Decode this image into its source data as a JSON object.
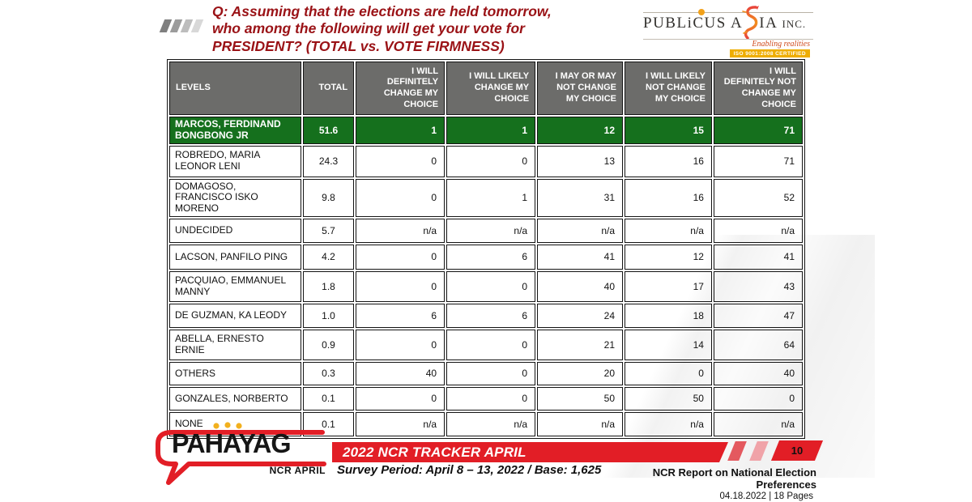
{
  "question": {
    "text": "Q: Assuming that the elections are held tomorrow, who among the following will get your vote for PRESIDENT? (TOTAL vs. VOTE FIRMNESS)"
  },
  "logo": {
    "name_pre": "PUBL",
    "name_i": "i",
    "name_mid": "CUS A",
    "name_post": "IA ",
    "inc": "INC.",
    "tagline": "Enabling realities",
    "badge": "ISO 9001:2008 CERTIFIED"
  },
  "table": {
    "headers": [
      "LEVELS",
      "TOTAL",
      "I WILL DEFINITELY CHANGE MY CHOICE",
      "I WILL LIKELY CHANGE MY CHOICE",
      "I MAY OR MAY NOT CHANGE MY CHOICE",
      "I WILL LIKELY NOT CHANGE MY CHOICE",
      "I WILL DEFINITELY NOT CHANGE MY CHOICE"
    ],
    "rows": [
      {
        "level": "MARCOS, FERDINAND BONGBONG JR",
        "total": "51.6",
        "values": [
          "1",
          "1",
          "12",
          "15",
          "71"
        ],
        "highlight": true
      },
      {
        "level": "ROBREDO, MARIA LEONOR LENI",
        "total": "24.3",
        "values": [
          "0",
          "0",
          "13",
          "16",
          "71"
        ],
        "highlight": false
      },
      {
        "level": "DOMAGOSO, FRANCISCO ISKO MORENO",
        "total": "9.8",
        "values": [
          "0",
          "1",
          "31",
          "16",
          "52"
        ],
        "highlight": false
      },
      {
        "level": "UNDECIDED",
        "total": "5.7",
        "values": [
          "n/a",
          "n/a",
          "n/a",
          "n/a",
          "n/a"
        ],
        "highlight": false
      },
      {
        "level": "LACSON, PANFILO PING",
        "total": "4.2",
        "values": [
          "0",
          "6",
          "41",
          "12",
          "41"
        ],
        "highlight": false
      },
      {
        "level": "PACQUIAO, EMMANUEL MANNY",
        "total": "1.8",
        "values": [
          "0",
          "0",
          "40",
          "17",
          "43"
        ],
        "highlight": false
      },
      {
        "level": "DE GUZMAN, KA LEODY",
        "total": "1.0",
        "values": [
          "6",
          "6",
          "24",
          "18",
          "47"
        ],
        "highlight": false
      },
      {
        "level": "ABELLA, ERNESTO ERNIE",
        "total": "0.9",
        "values": [
          "0",
          "0",
          "21",
          "14",
          "64"
        ],
        "highlight": false
      },
      {
        "level": "OTHERS",
        "total": "0.3",
        "values": [
          "40",
          "0",
          "20",
          "0",
          "40"
        ],
        "highlight": false
      },
      {
        "level": "GONZALES, NORBERTO",
        "total": "0.1",
        "values": [
          "0",
          "0",
          "50",
          "50",
          "0"
        ],
        "highlight": false
      },
      {
        "level": "NONE",
        "total": "0.1",
        "values": [
          "n/a",
          "n/a",
          "n/a",
          "n/a",
          "n/a"
        ],
        "highlight": false
      }
    ]
  },
  "footer": {
    "logo_text": "PAHAYAG",
    "logo_sub": "NCR APRIL",
    "banner": "2022 NCR TRACKER APRIL",
    "survey_period": "Survey Period: April 8 – 13, 2022 / Base: 1,625",
    "page_number": "10",
    "report_title": "NCR Report on National Election Preferences",
    "report_meta": "04.18.2022 | 18 Pages"
  },
  "colors": {
    "question_red": "#9a1216",
    "highlight_green": "#15701d",
    "header_gray": "#6c6c6a",
    "banner_red": "#e21e26",
    "logo_orange": "#f2a11a"
  }
}
